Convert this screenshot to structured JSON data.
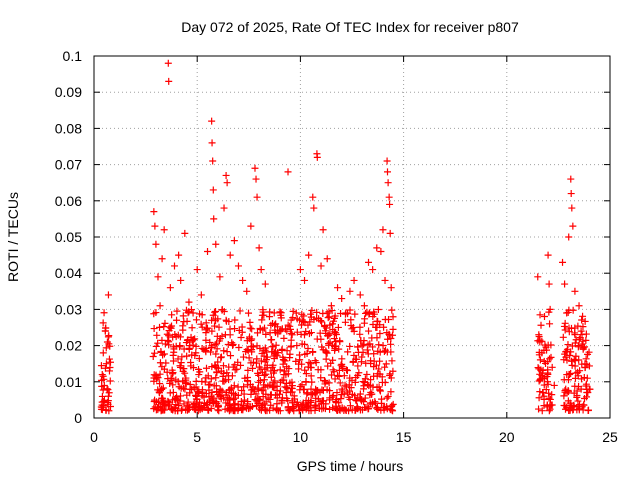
{
  "chart_data": {
    "type": "scatter",
    "title": "Day 072 of 2025, Rate Of TEC Index for receiver p807",
    "xlabel": "GPS time / hours",
    "ylabel": "ROTI / TECUs",
    "xlim": [
      0,
      25
    ],
    "ylim": [
      0,
      0.1
    ],
    "x_ticks": [
      "0",
      "5",
      "10",
      "15",
      "20",
      "25"
    ],
    "y_ticks": [
      "0",
      "0.01",
      "0.02",
      "0.03",
      "0.04",
      "0.05",
      "0.06",
      "0.07",
      "0.08",
      "0.09",
      "0.1"
    ],
    "x_tick_values": [
      0,
      5,
      10,
      15,
      20,
      25
    ],
    "y_tick_values": [
      0,
      0.01,
      0.02,
      0.03,
      0.04,
      0.05,
      0.06,
      0.07,
      0.08,
      0.09,
      0.1
    ],
    "grid": true,
    "marker": "+",
    "color": "#ff0000",
    "series": [
      {
        "points": [
          [
            0.4,
            0.012
          ],
          [
            0.45,
            0.018
          ],
          [
            0.5,
            0.009
          ],
          [
            0.55,
            0.024
          ],
          [
            0.6,
            0.015
          ],
          [
            0.65,
            0.021
          ],
          [
            0.7,
            0.034
          ],
          [
            0.7,
            0.006
          ],
          [
            0.72,
            0.002
          ],
          [
            0.75,
            0.013
          ],
          [
            2.9,
            0.057
          ],
          [
            2.95,
            0.053
          ],
          [
            3.0,
            0.048
          ],
          [
            3.1,
            0.039
          ],
          [
            3.2,
            0.031
          ],
          [
            3.3,
            0.044
          ],
          [
            3.4,
            0.052
          ],
          [
            3.6,
            0.098
          ],
          [
            3.62,
            0.093
          ],
          [
            3.7,
            0.036
          ],
          [
            3.9,
            0.042
          ],
          [
            4.0,
            0.027
          ],
          [
            4.1,
            0.045
          ],
          [
            4.2,
            0.038
          ],
          [
            4.4,
            0.051
          ],
          [
            4.6,
            0.032
          ],
          [
            4.8,
            0.029
          ],
          [
            5.0,
            0.041
          ],
          [
            5.2,
            0.034
          ],
          [
            5.5,
            0.046
          ],
          [
            5.7,
            0.082
          ],
          [
            5.72,
            0.076
          ],
          [
            5.75,
            0.071
          ],
          [
            5.78,
            0.063
          ],
          [
            5.8,
            0.055
          ],
          [
            5.9,
            0.048
          ],
          [
            6.1,
            0.039
          ],
          [
            6.3,
            0.058
          ],
          [
            6.4,
            0.067
          ],
          [
            6.45,
            0.065
          ],
          [
            6.6,
            0.045
          ],
          [
            6.8,
            0.049
          ],
          [
            7.0,
            0.042
          ],
          [
            7.2,
            0.038
          ],
          [
            7.4,
            0.035
          ],
          [
            7.6,
            0.053
          ],
          [
            7.8,
            0.069
          ],
          [
            7.85,
            0.066
          ],
          [
            7.9,
            0.061
          ],
          [
            8.0,
            0.047
          ],
          [
            8.1,
            0.041
          ],
          [
            8.3,
            0.037
          ],
          [
            8.5,
            0.028
          ],
          [
            8.8,
            0.026
          ],
          [
            9.0,
            0.024
          ],
          [
            9.2,
            0.022
          ],
          [
            9.4,
            0.068
          ],
          [
            9.6,
            0.023
          ],
          [
            9.8,
            0.029
          ],
          [
            10.0,
            0.041
          ],
          [
            10.2,
            0.038
          ],
          [
            10.4,
            0.045
          ],
          [
            10.6,
            0.061
          ],
          [
            10.65,
            0.058
          ],
          [
            10.8,
            0.073
          ],
          [
            10.82,
            0.072
          ],
          [
            11.0,
            0.042
          ],
          [
            11.1,
            0.052
          ],
          [
            11.3,
            0.044
          ],
          [
            11.5,
            0.031
          ],
          [
            11.8,
            0.036
          ],
          [
            12.0,
            0.033
          ],
          [
            12.2,
            0.029
          ],
          [
            12.4,
            0.035
          ],
          [
            12.6,
            0.038
          ],
          [
            12.9,
            0.034
          ],
          [
            13.1,
            0.031
          ],
          [
            13.3,
            0.043
          ],
          [
            13.5,
            0.041
          ],
          [
            13.7,
            0.047
          ],
          [
            13.9,
            0.046
          ],
          [
            14.0,
            0.052
          ],
          [
            14.1,
            0.038
          ],
          [
            14.2,
            0.071
          ],
          [
            14.22,
            0.068
          ],
          [
            14.25,
            0.065
          ],
          [
            14.3,
            0.061
          ],
          [
            14.32,
            0.059
          ],
          [
            14.35,
            0.051
          ],
          [
            14.4,
            0.036
          ],
          [
            21.5,
            0.039
          ],
          [
            21.55,
            0.023
          ],
          [
            21.6,
            0.021
          ],
          [
            21.7,
            0.018
          ],
          [
            21.8,
            0.006
          ],
          [
            22.0,
            0.045
          ],
          [
            22.05,
            0.037
          ],
          [
            22.1,
            0.03
          ],
          [
            22.2,
            0.014
          ],
          [
            22.3,
            0.009
          ],
          [
            22.7,
            0.043
          ],
          [
            22.8,
            0.037
          ],
          [
            22.9,
            0.029
          ],
          [
            23.0,
            0.05
          ],
          [
            23.1,
            0.066
          ],
          [
            23.12,
            0.062
          ],
          [
            23.15,
            0.058
          ],
          [
            23.2,
            0.053
          ],
          [
            23.3,
            0.035
          ],
          [
            23.5,
            0.031
          ],
          [
            23.6,
            0.024
          ],
          [
            23.7,
            0.019
          ],
          [
            23.8,
            0.014
          ],
          [
            23.9,
            0.011
          ],
          [
            24.0,
            0.008
          ]
        ],
        "band_hours": [
          [
            0.35,
            0.8
          ],
          [
            2.85,
            14.5
          ],
          [
            21.5,
            22.2
          ],
          [
            22.7,
            24.05
          ]
        ],
        "band_typical_range": [
          0.002,
          0.03
        ]
      }
    ]
  }
}
